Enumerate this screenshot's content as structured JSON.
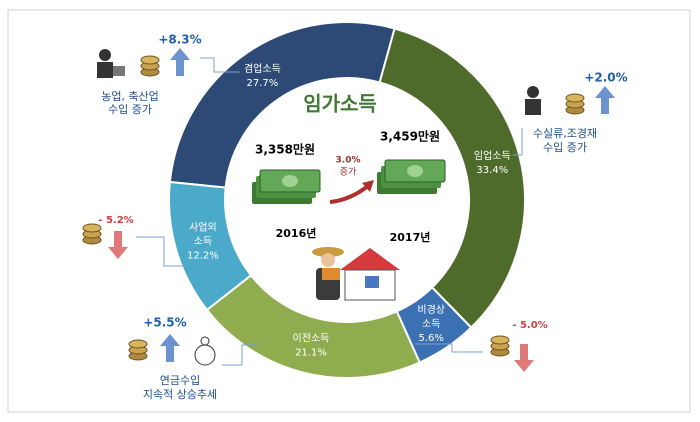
{
  "chart_data": {
    "type": "donut",
    "title": "임가소득",
    "categories": [
      [
        "겸업소득"
      ],
      [
        "임업소득"
      ],
      [
        "비경상",
        "소득"
      ],
      [
        "이전소득"
      ],
      [
        "사업외",
        "소득"
      ]
    ],
    "values": [
      27.7,
      33.4,
      5.6,
      21.1,
      12.2
    ],
    "value_labels": [
      "27.7%",
      "33.4%",
      "5.6%",
      "21.1%",
      "12.2%"
    ],
    "colors": [
      "#2d4a77",
      "#4f6b2c",
      "#3b70b3",
      "#8fad4f",
      "#4ba9c9"
    ],
    "comparison": {
      "amounts": [
        "3,358만원",
        "3,459만원"
      ],
      "years": [
        "2016년",
        "2017년"
      ],
      "change": [
        "3.0%",
        "증가"
      ]
    },
    "annotations": [
      {
        "change": "+8.3%",
        "text": [
          "농업, 축산업",
          "수입 증가"
        ]
      },
      {
        "change": "+2.0%",
        "text": [
          "수실류,조경재",
          "수입 증가"
        ]
      },
      {
        "change": "- 5.2%"
      },
      {
        "change": "- 5.0%"
      },
      {
        "change": "+5.5%",
        "text": [
          "연금수입",
          "지속적 상승추세"
        ]
      }
    ]
  }
}
